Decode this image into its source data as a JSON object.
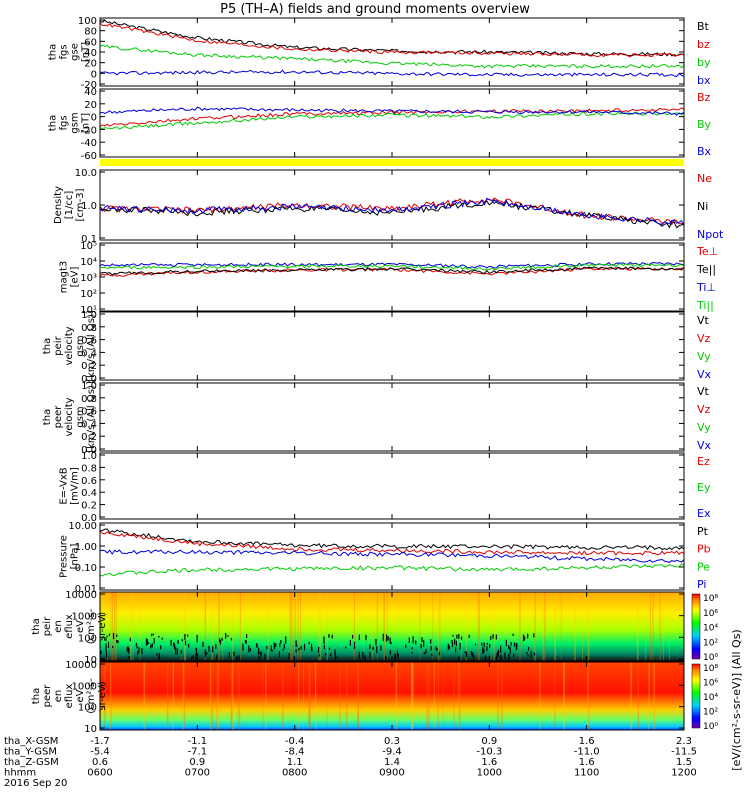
{
  "title": "P5 (TH–A) fields and ground moments overview",
  "colors": {
    "black": "#000000",
    "red": "#e00000",
    "green": "#00cc00",
    "blue": "#0000dd",
    "yellow": "#ffff00",
    "orange": "#ff8800"
  },
  "panels": [
    {
      "id": "fgs-gse",
      "ylabel_lines": [
        "tha",
        "fgs",
        "gse",
        "[nT]"
      ],
      "yticks": [
        "100",
        "80",
        "60",
        "40",
        "20",
        "0",
        "-20"
      ],
      "legend": [
        {
          "label": "Bt",
          "color": "#000000"
        },
        {
          "label": "bz",
          "color": "#e00000"
        },
        {
          "label": "by",
          "color": "#00cc00"
        },
        {
          "label": "bx",
          "color": "#0000dd"
        }
      ]
    },
    {
      "id": "fgs-gsm",
      "ylabel_lines": [
        "tha",
        "fgs",
        "gsm",
        "[nT]"
      ],
      "yticks": [
        "40",
        "20",
        "0",
        "-20",
        "-40",
        "-60"
      ],
      "legend": [
        {
          "label": "Bz",
          "color": "#e00000"
        },
        {
          "label": "By",
          "color": "#00cc00"
        },
        {
          "label": "Bx",
          "color": "#0000dd"
        }
      ]
    },
    {
      "id": "density",
      "ylabel_lines": [
        "Density",
        "[1/cc]",
        "[cm-3]"
      ],
      "yticks": [
        "10.0",
        "1.0",
        "0.1"
      ],
      "legend": [
        {
          "label": "Ne",
          "color": "#e00000"
        },
        {
          "label": "Ni",
          "color": "#000000"
        },
        {
          "label": "Npot",
          "color": "#0000dd"
        }
      ]
    },
    {
      "id": "temperature",
      "ylabel_lines": [
        "magt3",
        "[eV]"
      ],
      "yticks": [
        "10⁵",
        "10⁴",
        "10³",
        "10²",
        "10¹"
      ],
      "legend": [
        {
          "label": "Te⊥",
          "color": "#e00000"
        },
        {
          "label": "Te||",
          "color": "#000000"
        },
        {
          "label": "Ti⊥",
          "color": "#0000dd"
        },
        {
          "label": "Ti||",
          "color": "#00cc00"
        }
      ]
    },
    {
      "id": "peir-velocity",
      "ylabel_lines": [
        "tha",
        "peir",
        "velocity",
        "gsm",
        "[km/s (All Qs)]"
      ],
      "yticks": [
        "1.0",
        "0.8",
        "0.6",
        "0.4",
        "0.2",
        "0.0"
      ],
      "legend": [
        {
          "label": "Vt",
          "color": "#000000"
        },
        {
          "label": "Vz",
          "color": "#e00000"
        },
        {
          "label": "Vy",
          "color": "#00cc00"
        },
        {
          "label": "Vx",
          "color": "#0000dd"
        }
      ]
    },
    {
      "id": "peer-velocity",
      "ylabel_lines": [
        "tha",
        "peer",
        "velocity",
        "gsm",
        "[km/s (All Qs)]"
      ],
      "yticks": [
        "1.0",
        "0.8",
        "0.6",
        "0.4",
        "0.2",
        "0.0"
      ],
      "legend": [
        {
          "label": "Vt",
          "color": "#000000"
        },
        {
          "label": "Vz",
          "color": "#e00000"
        },
        {
          "label": "Vy",
          "color": "#00cc00"
        },
        {
          "label": "Vx",
          "color": "#0000dd"
        }
      ]
    },
    {
      "id": "efield",
      "ylabel_lines": [
        "E=-VxB",
        "[mV/m]"
      ],
      "yticks": [
        "1.0",
        "0.8",
        "0.6",
        "0.4",
        "0.2",
        "0.0"
      ],
      "legend": [
        {
          "label": "Ez",
          "color": "#e00000"
        },
        {
          "label": "Ey",
          "color": "#00cc00"
        },
        {
          "label": "Ex",
          "color": "#0000dd"
        }
      ]
    },
    {
      "id": "pressure",
      "ylabel_lines": [
        "Pressure",
        "[nPa]"
      ],
      "yticks": [
        "10.00",
        "1.00",
        "0.10",
        "0.01"
      ],
      "legend": [
        {
          "label": "Pt",
          "color": "#000000"
        },
        {
          "label": "Pb",
          "color": "#e00000"
        },
        {
          "label": "Pe",
          "color": "#00cc00"
        },
        {
          "label": "Pi",
          "color": "#0000dd"
        }
      ]
    },
    {
      "id": "peir-eflux",
      "ylabel_lines": [
        "tha",
        "peir",
        "en",
        "eflux",
        "eV",
        "(cm²-s-",
        "sr-eV)"
      ],
      "yticks": [
        "10000",
        "1000",
        "100",
        "10"
      ],
      "colorbar_ticks": [
        "10⁸",
        "10⁶",
        "10⁴",
        "10²",
        "10⁰"
      ]
    },
    {
      "id": "peer-eflux",
      "ylabel_lines": [
        "tha",
        "peer",
        "en",
        "eflux",
        "eV",
        "(cm²-s-",
        "sr-eV)"
      ],
      "yticks": [
        "10000",
        "1000",
        "100",
        "10"
      ],
      "colorbar_ticks": [
        "10⁸",
        "10⁶",
        "10⁴",
        "10²",
        "10⁰"
      ]
    }
  ],
  "colorbar_label": "[eV/(cm²-s-sr-eV)] (All Qs)",
  "time_axis": {
    "row_labels": [
      "tha_X-GSM",
      "tha_Y-GSM",
      "tha_Z-GSM",
      "hhmm",
      "2016 Sep 20"
    ],
    "columns": [
      {
        "x_gsm": "-1.7",
        "y_gsm": "-5.4",
        "z_gsm": "0.6",
        "hhmm": "0600"
      },
      {
        "x_gsm": "-1.1",
        "y_gsm": "-7.1",
        "z_gsm": "0.9",
        "hhmm": "0700"
      },
      {
        "x_gsm": "-0.4",
        "y_gsm": "-8.4",
        "z_gsm": "1.1",
        "hhmm": "0800"
      },
      {
        "x_gsm": "0.3",
        "y_gsm": "-9.4",
        "z_gsm": "1.4",
        "hhmm": "0900"
      },
      {
        "x_gsm": "0.9",
        "y_gsm": "-10.3",
        "z_gsm": "1.6",
        "hhmm": "1000"
      },
      {
        "x_gsm": "1.6",
        "y_gsm": "-11.0",
        "z_gsm": "1.6",
        "hhmm": "1100"
      },
      {
        "x_gsm": "2.3",
        "y_gsm": "-11.5",
        "z_gsm": "1.5",
        "hhmm": "1200"
      }
    ]
  },
  "chart_data": [
    {
      "type": "line",
      "x": [
        "0600",
        "0700",
        "0800",
        "0900",
        "1000",
        "1100",
        "1200"
      ],
      "ylim": [
        -20,
        100
      ],
      "series": [
        {
          "name": "Bt",
          "values": [
            95,
            65,
            48,
            42,
            40,
            37,
            36
          ]
        },
        {
          "name": "bz",
          "values": [
            90,
            60,
            45,
            40,
            38,
            35,
            34
          ]
        },
        {
          "name": "by",
          "values": [
            50,
            35,
            28,
            20,
            15,
            15,
            15
          ]
        },
        {
          "name": "bx",
          "values": [
            2,
            4,
            5,
            2,
            0,
            0,
            0
          ]
        }
      ]
    },
    {
      "type": "line",
      "x": [
        "0600",
        "0700",
        "0800",
        "0900",
        "1000",
        "1100",
        "1200"
      ],
      "ylim": [
        -70,
        40
      ],
      "series": [
        {
          "name": "Bz",
          "values": [
            -20,
            -8,
            0,
            2,
            4,
            5,
            7
          ]
        },
        {
          "name": "By",
          "values": [
            -25,
            -15,
            -5,
            -2,
            -5,
            0,
            0
          ]
        },
        {
          "name": "Bx",
          "values": [
            2,
            8,
            6,
            4,
            3,
            3,
            0
          ]
        }
      ]
    },
    {
      "type": "line",
      "x": [
        "0600",
        "0700",
        "0800",
        "0900",
        "1000",
        "1100",
        "1200"
      ],
      "ylim": [
        0.1,
        10
      ],
      "yscale": "log",
      "series": [
        {
          "name": "Ne",
          "values": [
            0.8,
            0.7,
            1.0,
            0.8,
            1.5,
            0.5,
            0.3
          ]
        },
        {
          "name": "Ni",
          "values": [
            0.8,
            0.6,
            0.8,
            0.6,
            1.2,
            0.5,
            0.25
          ]
        },
        {
          "name": "Npot",
          "values": [
            0.8,
            0.7,
            0.9,
            0.7,
            1.3,
            0.5,
            0.3
          ]
        }
      ]
    },
    {
      "type": "line",
      "x": [
        "0600",
        "0700",
        "0800",
        "0900",
        "1000",
        "1100",
        "1200"
      ],
      "ylim": [
        10,
        100000
      ],
      "yscale": "log",
      "series": [
        {
          "name": "Te⊥",
          "values": [
            1200,
            2000,
            2500,
            2800,
            1500,
            3000,
            3000
          ]
        },
        {
          "name": "Te||",
          "values": [
            1500,
            2200,
            2600,
            3000,
            2000,
            3200,
            3100
          ]
        },
        {
          "name": "Ti⊥",
          "values": [
            5000,
            5200,
            5300,
            5500,
            4000,
            5800,
            6000
          ]
        },
        {
          "name": "Ti||",
          "values": [
            3500,
            3800,
            4200,
            4500,
            3000,
            5000,
            5000
          ]
        }
      ]
    },
    {
      "type": "line",
      "x": [
        "0600",
        "0700",
        "0800",
        "0900",
        "1000",
        "1100",
        "1200"
      ],
      "ylim": [
        0,
        1
      ],
      "series": []
    },
    {
      "type": "line",
      "x": [
        "0600",
        "0700",
        "0800",
        "0900",
        "1000",
        "1100",
        "1200"
      ],
      "ylim": [
        0,
        1
      ],
      "series": []
    },
    {
      "type": "line",
      "x": [
        "0600",
        "0700",
        "0800",
        "0900",
        "1000",
        "1100",
        "1200"
      ],
      "ylim": [
        0,
        1
      ],
      "series": []
    },
    {
      "type": "line",
      "x": [
        "0600",
        "0700",
        "0800",
        "0900",
        "1000",
        "1100",
        "1200"
      ],
      "ylim": [
        0.01,
        10
      ],
      "yscale": "log",
      "series": [
        {
          "name": "Pt",
          "values": [
            5.0,
            1.5,
            1.0,
            0.9,
            0.9,
            0.8,
            0.8
          ]
        },
        {
          "name": "Pb",
          "values": [
            4.0,
            1.2,
            0.7,
            0.6,
            0.5,
            0.45,
            0.45
          ]
        },
        {
          "name": "Pe",
          "values": [
            0.05,
            0.08,
            0.09,
            0.1,
            0.08,
            0.1,
            0.12
          ]
        },
        {
          "name": "Pi",
          "values": [
            0.5,
            0.5,
            0.45,
            0.4,
            0.35,
            0.25,
            0.2
          ]
        }
      ]
    },
    {
      "type": "heatmap",
      "x": [
        "0600",
        "0700",
        "0800",
        "0900",
        "1000",
        "1100",
        "1200"
      ],
      "ylim": [
        5,
        20000
      ],
      "yscale": "log",
      "zscale": "log",
      "zlim": [
        1,
        100000000
      ]
    },
    {
      "type": "heatmap",
      "x": [
        "0600",
        "0700",
        "0800",
        "0900",
        "1000",
        "1100",
        "1200"
      ],
      "ylim": [
        5,
        20000
      ],
      "yscale": "log",
      "zscale": "log",
      "zlim": [
        1,
        100000000
      ]
    }
  ]
}
